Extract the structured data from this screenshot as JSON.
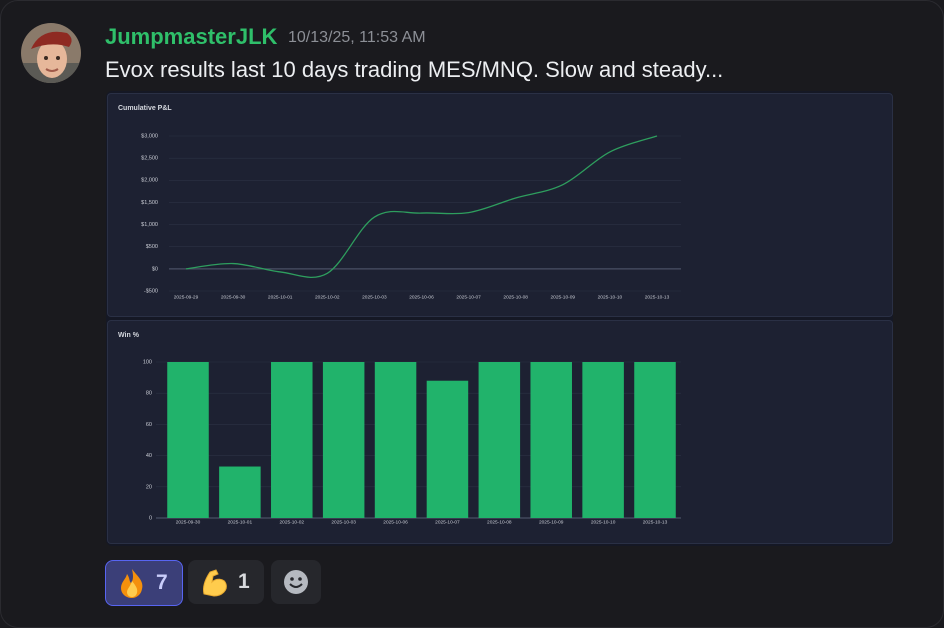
{
  "author": "JumpmasterJLK",
  "timestamp": "10/13/25, 11:53 AM",
  "text": "Evox results last 10 days trading MES/MNQ. Slow and steady...",
  "chart_data": [
    {
      "type": "line",
      "title": "Cumulative P&L",
      "categories": [
        "2025-09-29",
        "2025-09-30",
        "2025-10-01",
        "2025-10-02",
        "2025-10-03",
        "2025-10-06",
        "2025-10-07",
        "2025-10-08",
        "2025-10-09",
        "2025-10-10",
        "2025-10-13"
      ],
      "values": [
        0,
        120,
        -70,
        -100,
        1170,
        1260,
        1270,
        1600,
        1900,
        2640,
        3000
      ],
      "color": "#2e9e5e",
      "ylim": [
        -500,
        3000
      ],
      "yticks": [
        {
          "value": -500,
          "label": "-$500"
        },
        {
          "value": 0,
          "label": "$0"
        },
        {
          "value": 500,
          "label": "$500"
        },
        {
          "value": 1000,
          "label": "$1,000"
        },
        {
          "value": 1500,
          "label": "$1,500"
        },
        {
          "value": 2000,
          "label": "$2,000"
        },
        {
          "value": 2500,
          "label": "$2,500"
        },
        {
          "value": 3000,
          "label": "$3,000"
        }
      ],
      "grid": true
    },
    {
      "type": "bar",
      "title": "Win %",
      "categories": [
        "2025-09-30",
        "2025-10-01",
        "2025-10-02",
        "2025-10-03",
        "2025-10-06",
        "2025-10-07",
        "2025-10-08",
        "2025-10-09",
        "2025-10-10",
        "2025-10-13"
      ],
      "values": [
        100,
        33,
        100,
        100,
        100,
        88,
        100,
        100,
        100,
        100
      ],
      "color": "#21b36b",
      "ylim": [
        0,
        100
      ],
      "yticks": [
        0,
        20,
        40,
        60,
        80,
        100
      ],
      "grid": true
    }
  ],
  "reactions": [
    {
      "count": 7
    },
    {
      "count": 1
    }
  ]
}
